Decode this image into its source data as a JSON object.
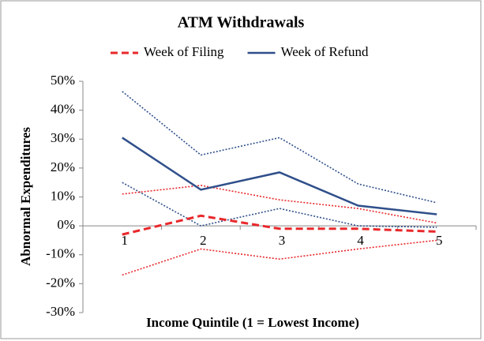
{
  "chart_data": {
    "type": "line",
    "title": "ATM Withdrawals",
    "xlabel": "Income Quintile (1 = Lowest Income)",
    "ylabel": "Abnormal Expenditures",
    "categories": [
      "1",
      "2",
      "3",
      "4",
      "5"
    ],
    "series": [
      {
        "name": "Week of Filing",
        "color": "#e8282b",
        "style": "dashed",
        "values": [
          -3,
          3.5,
          -1,
          -1,
          -2
        ]
      },
      {
        "name": "Week of Refund",
        "color": "#2f4f8a",
        "style": "solid",
        "values": [
          30.5,
          12.5,
          18.5,
          7,
          4
        ]
      },
      {
        "color": "#e8282b",
        "style": "dotted",
        "values": [
          11,
          14,
          9,
          6,
          1
        ]
      },
      {
        "color": "#e8282b",
        "style": "dotted",
        "values": [
          -17,
          -8,
          -11.5,
          -8,
          -5
        ]
      },
      {
        "color": "#2f4f8a",
        "style": "dotted",
        "values": [
          46.5,
          24.5,
          30.5,
          14.5,
          8
        ]
      },
      {
        "color": "#2f4f8a",
        "style": "dotted",
        "values": [
          15,
          0,
          6,
          0,
          -0.5
        ]
      }
    ],
    "ylim": [
      -30,
      50
    ],
    "yticks": [
      {
        "value": -30,
        "label": "-30%"
      },
      {
        "value": -20,
        "label": "-20%"
      },
      {
        "value": -10,
        "label": "-10%"
      },
      {
        "value": 0,
        "label": "0%"
      },
      {
        "value": 10,
        "label": "10%"
      },
      {
        "value": 20,
        "label": "20%"
      },
      {
        "value": 30,
        "label": "30%"
      },
      {
        "value": 40,
        "label": "40%"
      },
      {
        "value": 50,
        "label": "50%"
      }
    ],
    "grid": false,
    "legend": "top"
  }
}
